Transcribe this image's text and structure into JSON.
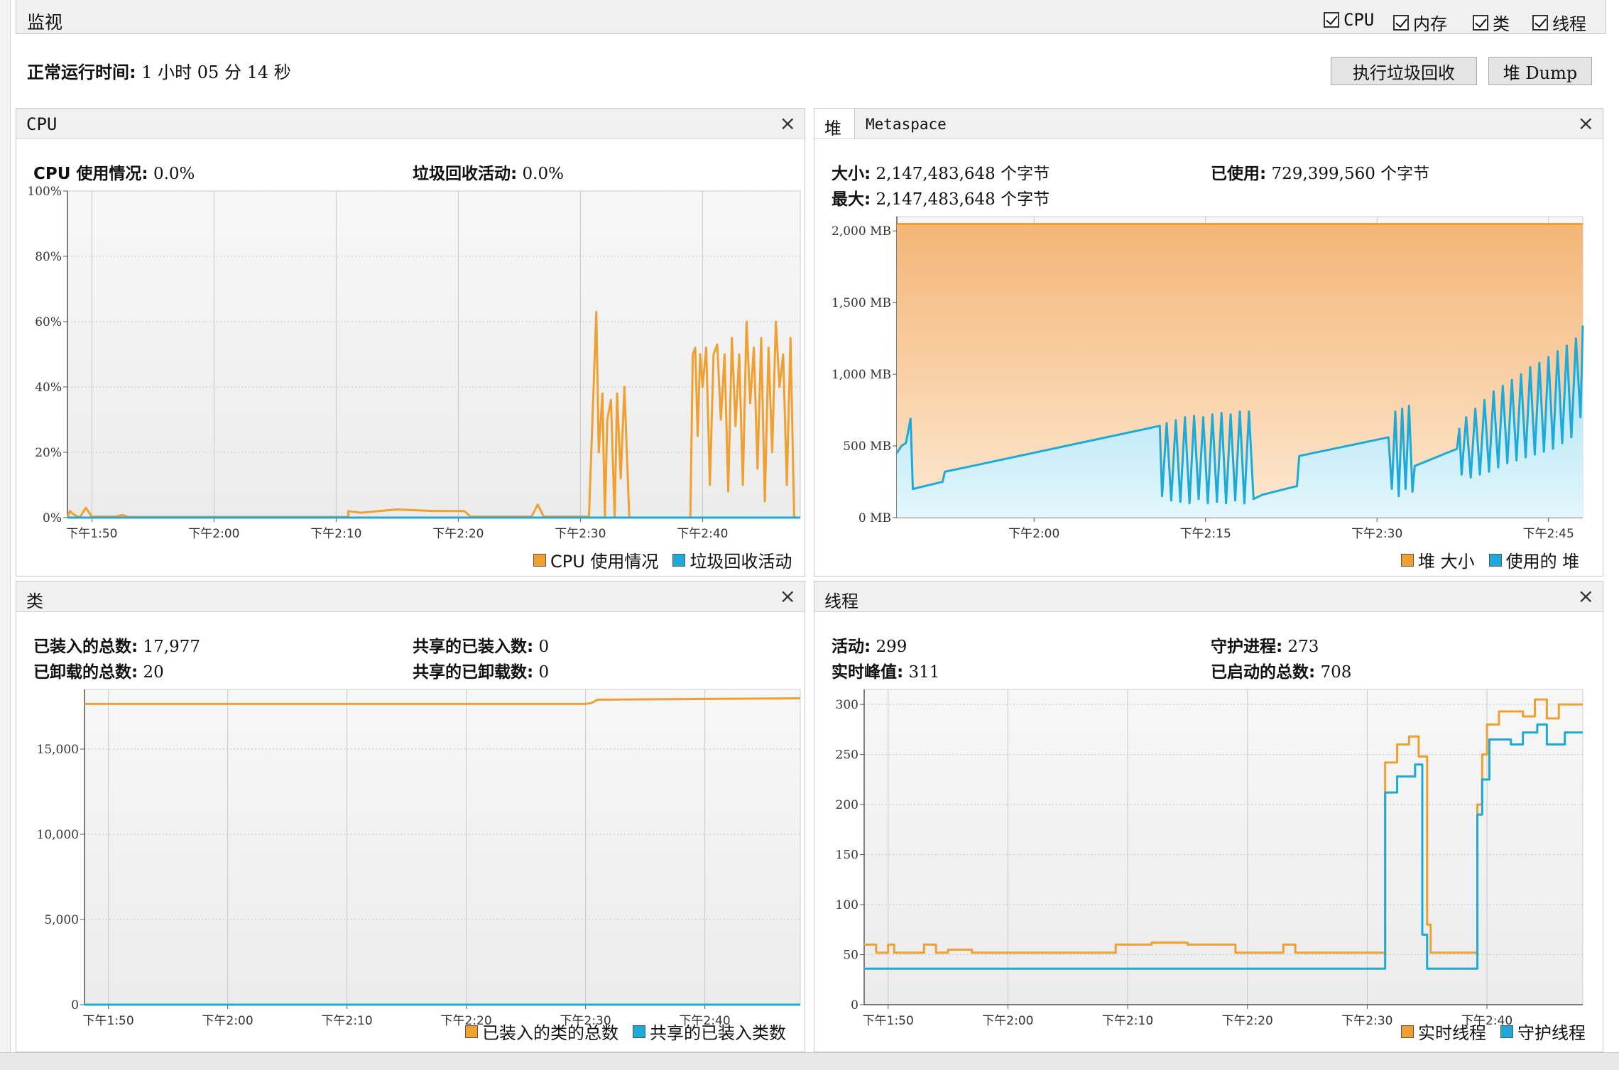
{
  "window": {
    "title": "监视",
    "checkboxes": [
      {
        "label": "CPU",
        "checked": true
      },
      {
        "label": "内存",
        "checked": true
      },
      {
        "label": "类",
        "checked": true
      },
      {
        "label": "线程",
        "checked": true
      }
    ]
  },
  "uptime": {
    "label": "正常运行时间:",
    "value": "1 小时 05 分 14 秒"
  },
  "buttons": {
    "gc": "执行垃圾回收",
    "heap_dump": "堆 Dump"
  },
  "colors": {
    "orange": "#f0a030",
    "blue": "#1eaad8"
  },
  "cpu": {
    "title": "CPU",
    "usage_label": "CPU 使用情况:",
    "usage_value": "0.0%",
    "gc_label": "垃圾回收活动:",
    "gc_value": "0.0%",
    "legend": [
      "CPU 使用情况",
      "垃圾回收活动"
    ]
  },
  "memory": {
    "tabs": [
      "堆",
      "Metaspace"
    ],
    "size_label": "大小:",
    "size_value": "2,147,483,648 个字节",
    "max_label": "最大:",
    "max_value": "2,147,483,648 个字节",
    "used_label": "已使用:",
    "used_value": "729,399,560 个字节",
    "legend": [
      "堆 大小",
      "使用的 堆"
    ]
  },
  "classes": {
    "title": "类",
    "loaded_label": "已装入的总数:",
    "loaded_value": "17,977",
    "unloaded_label": "已卸载的总数:",
    "unloaded_value": "20",
    "shared_loaded_label": "共享的已装入数:",
    "shared_loaded_value": "0",
    "shared_unloaded_label": "共享的已卸载数:",
    "shared_unloaded_value": "0",
    "legend": [
      "已装入的类的总数",
      "共享的已装入类数"
    ]
  },
  "threads": {
    "title": "线程",
    "live_label": "活动:",
    "live_value": "299",
    "peak_label": "实时峰值:",
    "peak_value": "311",
    "daemon_label": "守护进程:",
    "daemon_value": "273",
    "started_label": "已启动的总数:",
    "started_value": "708",
    "legend": [
      "实时线程",
      "守护线程"
    ]
  },
  "chart_data": [
    {
      "id": "cpu",
      "type": "line",
      "xlabel": "",
      "ylabel": "",
      "x_ticks": [
        "下午1:50",
        "下午2:00",
        "下午2:10",
        "下午2:20",
        "下午2:30",
        "下午2:40"
      ],
      "y_ticks": [
        "0%",
        "20%",
        "40%",
        "60%",
        "80%",
        "100%"
      ],
      "ylim": [
        0,
        100
      ],
      "xlim_minutes": [
        -2,
        58
      ],
      "x_tick_minutes": [
        0,
        10,
        20,
        30,
        40,
        50
      ],
      "grid": true,
      "series": [
        {
          "name": "CPU 使用情况",
          "color": "orange",
          "points": [
            [
              -2,
              0
            ],
            [
              -1.8,
              2
            ],
            [
              -1.5,
              1
            ],
            [
              -1,
              0
            ],
            [
              -0.5,
              3
            ],
            [
              0,
              0.3
            ],
            [
              2,
              0.3
            ],
            [
              2.5,
              0.8
            ],
            [
              3,
              0.2
            ],
            [
              21,
              0.2
            ],
            [
              21,
              2
            ],
            [
              22,
              1.5
            ],
            [
              25,
              2.5
            ],
            [
              28,
              2
            ],
            [
              30.5,
              2
            ],
            [
              31,
              0.3
            ],
            [
              36,
              0.3
            ],
            [
              36.5,
              4
            ],
            [
              37,
              0.3
            ],
            [
              40.7,
              0.3
            ],
            [
              41.3,
              63
            ],
            [
              41.5,
              20
            ],
            [
              41.8,
              38
            ],
            [
              42,
              0
            ],
            [
              42.2,
              30
            ],
            [
              42.5,
              36
            ],
            [
              42.8,
              0
            ],
            [
              43,
              38
            ],
            [
              43.3,
              12
            ],
            [
              43.6,
              40
            ],
            [
              44,
              0
            ],
            [
              45,
              0
            ],
            [
              49,
              0
            ],
            [
              49.2,
              50
            ],
            [
              49.4,
              52
            ],
            [
              49.6,
              25
            ],
            [
              49.8,
              50
            ],
            [
              50,
              40
            ],
            [
              50.3,
              52
            ],
            [
              50.6,
              10
            ],
            [
              50.9,
              50
            ],
            [
              51.2,
              53
            ],
            [
              51.5,
              30
            ],
            [
              51.8,
              50
            ],
            [
              52.1,
              8
            ],
            [
              52.4,
              55
            ],
            [
              52.7,
              28
            ],
            [
              53,
              50
            ],
            [
              53.3,
              10
            ],
            [
              53.6,
              60
            ],
            [
              53.9,
              35
            ],
            [
              54.2,
              52
            ],
            [
              54.5,
              15
            ],
            [
              54.8,
              55
            ],
            [
              55.1,
              5
            ],
            [
              55.4,
              52
            ],
            [
              55.7,
              20
            ],
            [
              56,
              60
            ],
            [
              56.3,
              40
            ],
            [
              56.6,
              50
            ],
            [
              56.9,
              10
            ],
            [
              57.2,
              55
            ],
            [
              57.5,
              0
            ]
          ]
        },
        {
          "name": "垃圾回收活动",
          "color": "blue",
          "points": [
            [
              -2,
              0
            ],
            [
              58,
              0
            ]
          ]
        }
      ]
    },
    {
      "id": "heap",
      "type": "area",
      "x_ticks": [
        "下午2:00",
        "下午2:15",
        "下午2:30",
        "下午2:45"
      ],
      "y_ticks": [
        "0 MB",
        "500 MB",
        "1,000 MB",
        "1,500 MB",
        "2,000 MB"
      ],
      "ylim": [
        0,
        2100
      ],
      "xlim_minutes": [
        -2,
        58
      ],
      "x_tick_minutes": [
        10,
        25,
        40,
        55
      ],
      "grid": true,
      "series": [
        {
          "name": "堆 大小",
          "color": "orange",
          "points": [
            [
              -2,
              2048
            ],
            [
              58,
              2048
            ]
          ]
        },
        {
          "name": "使用的 堆",
          "color": "blue",
          "points": [
            [
              -2,
              450
            ],
            [
              -1.6,
              500
            ],
            [
              -1.2,
              520
            ],
            [
              -0.8,
              690
            ],
            [
              -0.6,
              200
            ],
            [
              2,
              250
            ],
            [
              2.2,
              320
            ],
            [
              4,
              350
            ],
            [
              21,
              640
            ],
            [
              21.2,
              150
            ],
            [
              21.6,
              660
            ],
            [
              22,
              120
            ],
            [
              22.4,
              680
            ],
            [
              22.8,
              110
            ],
            [
              23.2,
              700
            ],
            [
              23.6,
              100
            ],
            [
              24,
              710
            ],
            [
              24.4,
              130
            ],
            [
              24.8,
              700
            ],
            [
              25.2,
              100
            ],
            [
              25.6,
              720
            ],
            [
              26,
              110
            ],
            [
              26.4,
              730
            ],
            [
              26.8,
              100
            ],
            [
              27.2,
              720
            ],
            [
              27.6,
              120
            ],
            [
              28,
              740
            ],
            [
              28.4,
              100
            ],
            [
              28.8,
              740
            ],
            [
              29.2,
              130
            ],
            [
              30,
              160
            ],
            [
              33,
              220
            ],
            [
              33.2,
              430
            ],
            [
              41,
              560
            ],
            [
              41.3,
              200
            ],
            [
              41.6,
              740
            ],
            [
              41.9,
              150
            ],
            [
              42.2,
              760
            ],
            [
              42.5,
              200
            ],
            [
              42.8,
              780
            ],
            [
              43.1,
              180
            ],
            [
              43.3,
              360
            ],
            [
              47,
              480
            ],
            [
              47.2,
              620
            ],
            [
              47.4,
              300
            ],
            [
              47.8,
              700
            ],
            [
              48.2,
              280
            ],
            [
              48.6,
              760
            ],
            [
              49,
              300
            ],
            [
              49.4,
              820
            ],
            [
              49.8,
              320
            ],
            [
              50.2,
              880
            ],
            [
              50.6,
              350
            ],
            [
              51,
              920
            ],
            [
              51.4,
              380
            ],
            [
              51.8,
              960
            ],
            [
              52.2,
              400
            ],
            [
              52.6,
              1000
            ],
            [
              53,
              420
            ],
            [
              53.4,
              1050
            ],
            [
              53.8,
              440
            ],
            [
              54.2,
              1080
            ],
            [
              54.6,
              460
            ],
            [
              55,
              1120
            ],
            [
              55.4,
              480
            ],
            [
              55.8,
              1160
            ],
            [
              56.2,
              520
            ],
            [
              56.6,
              1200
            ],
            [
              57,
              560
            ],
            [
              57.4,
              1250
            ],
            [
              57.8,
              700
            ],
            [
              58,
              1340
            ]
          ]
        }
      ]
    },
    {
      "id": "classes",
      "type": "line",
      "x_ticks": [
        "下午1:50",
        "下午2:00",
        "下午2:10",
        "下午2:20",
        "下午2:30",
        "下午2:40"
      ],
      "y_ticks": [
        "0",
        "5,000",
        "10,000",
        "15,000"
      ],
      "ylim": [
        0,
        18500
      ],
      "xlim_minutes": [
        -2,
        58
      ],
      "x_tick_minutes": [
        0,
        10,
        20,
        30,
        40,
        50
      ],
      "grid": true,
      "series": [
        {
          "name": "已装入的类的总数",
          "color": "orange",
          "points": [
            [
              -2,
              17650
            ],
            [
              40,
              17650
            ],
            [
              40.5,
              17700
            ],
            [
              41,
              17900
            ],
            [
              58,
              17977
            ]
          ]
        },
        {
          "name": "共享的已装入类数",
          "color": "blue",
          "points": [
            [
              -2,
              0
            ],
            [
              58,
              0
            ]
          ]
        }
      ]
    },
    {
      "id": "threads",
      "type": "line",
      "x_ticks": [
        "下午1:50",
        "下午2:00",
        "下午2:10",
        "下午2:20",
        "下午2:30",
        "下午2:40"
      ],
      "y_ticks": [
        "0",
        "50",
        "100",
        "150",
        "200",
        "250",
        "300"
      ],
      "ylim": [
        0,
        315
      ],
      "xlim_minutes": [
        -2,
        58
      ],
      "x_tick_minutes": [
        0,
        10,
        20,
        30,
        40,
        50
      ],
      "grid": true,
      "series": [
        {
          "name": "实时线程",
          "color": "orange",
          "points": [
            [
              -2,
              60
            ],
            [
              -1,
              60
            ],
            [
              -1,
              52
            ],
            [
              0,
              52
            ],
            [
              0,
              60
            ],
            [
              0.5,
              60
            ],
            [
              0.5,
              52
            ],
            [
              3,
              52
            ],
            [
              3,
              60
            ],
            [
              4,
              60
            ],
            [
              4,
              52
            ],
            [
              5,
              52
            ],
            [
              5,
              55
            ],
            [
              7,
              55
            ],
            [
              7,
              52
            ],
            [
              19,
              52
            ],
            [
              19,
              60
            ],
            [
              22,
              60
            ],
            [
              22,
              62
            ],
            [
              25,
              62
            ],
            [
              25,
              60
            ],
            [
              29,
              60
            ],
            [
              29,
              52
            ],
            [
              33,
              52
            ],
            [
              33,
              60
            ],
            [
              34,
              60
            ],
            [
              34,
              52
            ],
            [
              41.5,
              52
            ],
            [
              41.5,
              242
            ],
            [
              42.5,
              242
            ],
            [
              42.5,
              260
            ],
            [
              43.5,
              260
            ],
            [
              43.5,
              268
            ],
            [
              44.3,
              268
            ],
            [
              44.3,
              248
            ],
            [
              45,
              248
            ],
            [
              45,
              80
            ],
            [
              45.3,
              80
            ],
            [
              45.3,
              52
            ],
            [
              49.2,
              52
            ],
            [
              49.2,
              200
            ],
            [
              49.6,
              200
            ],
            [
              49.6,
              250
            ],
            [
              50,
              250
            ],
            [
              50,
              280
            ],
            [
              51,
              280
            ],
            [
              51,
              293
            ],
            [
              53,
              293
            ],
            [
              53,
              288
            ],
            [
              54,
              288
            ],
            [
              54,
              305
            ],
            [
              55,
              305
            ],
            [
              55,
              286
            ],
            [
              56,
              286
            ],
            [
              56,
              300
            ],
            [
              58,
              300
            ]
          ]
        },
        {
          "name": "守护线程",
          "color": "blue",
          "points": [
            [
              -2,
              36
            ],
            [
              41.5,
              36
            ],
            [
              41.5,
              212
            ],
            [
              42.5,
              212
            ],
            [
              42.5,
              228
            ],
            [
              44,
              228
            ],
            [
              44,
              240
            ],
            [
              44.6,
              240
            ],
            [
              44.6,
              70
            ],
            [
              45,
              70
            ],
            [
              45,
              36
            ],
            [
              49.2,
              36
            ],
            [
              49.2,
              190
            ],
            [
              49.6,
              190
            ],
            [
              49.6,
              225
            ],
            [
              50.2,
              225
            ],
            [
              50.2,
              265
            ],
            [
              52,
              265
            ],
            [
              52,
              260
            ],
            [
              53,
              260
            ],
            [
              53,
              272
            ],
            [
              54.2,
              272
            ],
            [
              54.2,
              280
            ],
            [
              55,
              280
            ],
            [
              55,
              260
            ],
            [
              56.5,
              260
            ],
            [
              56.5,
              272
            ],
            [
              58,
              272
            ]
          ]
        }
      ]
    }
  ]
}
